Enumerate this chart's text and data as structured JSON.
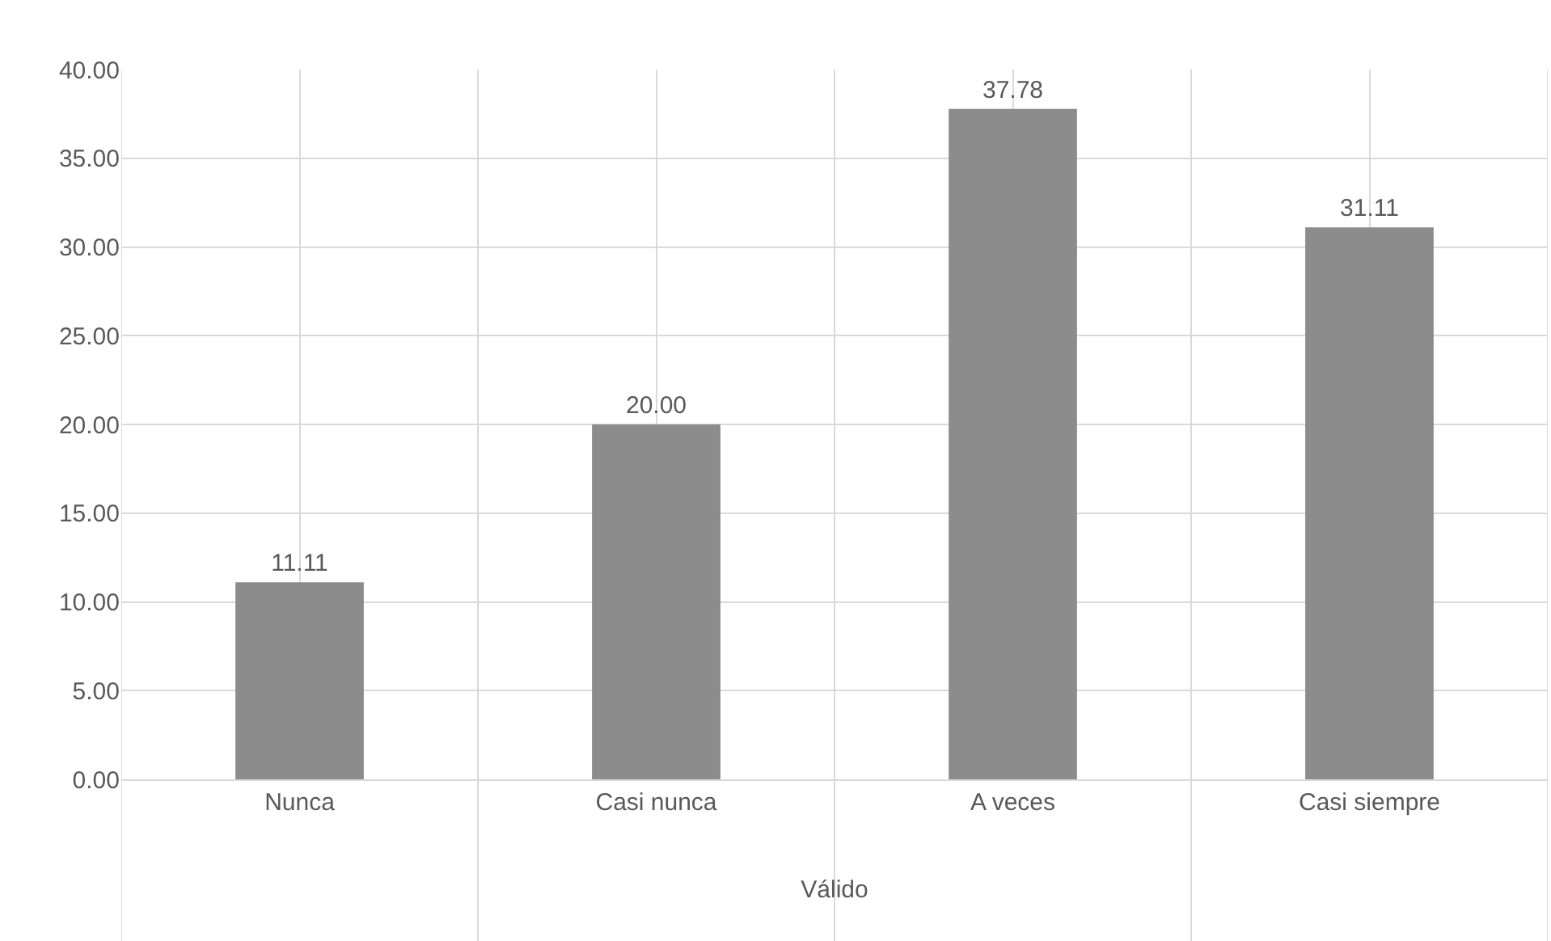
{
  "chart_data": {
    "type": "bar",
    "xlabel": "Válido",
    "categories": [
      "Nunca",
      "Casi nunca",
      "A veces",
      "Casi siempre"
    ],
    "values": [
      11.11,
      20.0,
      37.78,
      31.11
    ],
    "color": "#8c8c8c",
    "ylim": [
      0,
      40
    ],
    "yticks": [
      {
        "value": 0,
        "label": "0.00"
      },
      {
        "value": 5,
        "label": "5.00"
      },
      {
        "value": 10,
        "label": "10.00"
      },
      {
        "value": 15,
        "label": "15.00"
      },
      {
        "value": 20,
        "label": "20.00"
      },
      {
        "value": 25,
        "label": "25.00"
      },
      {
        "value": 30,
        "label": "30.00"
      },
      {
        "value": 35,
        "label": "35.00"
      },
      {
        "value": 40,
        "label": "40.00"
      }
    ],
    "value_labels": [
      "11.11",
      "20.00",
      "37.78",
      "31.11"
    ],
    "grid": true
  }
}
